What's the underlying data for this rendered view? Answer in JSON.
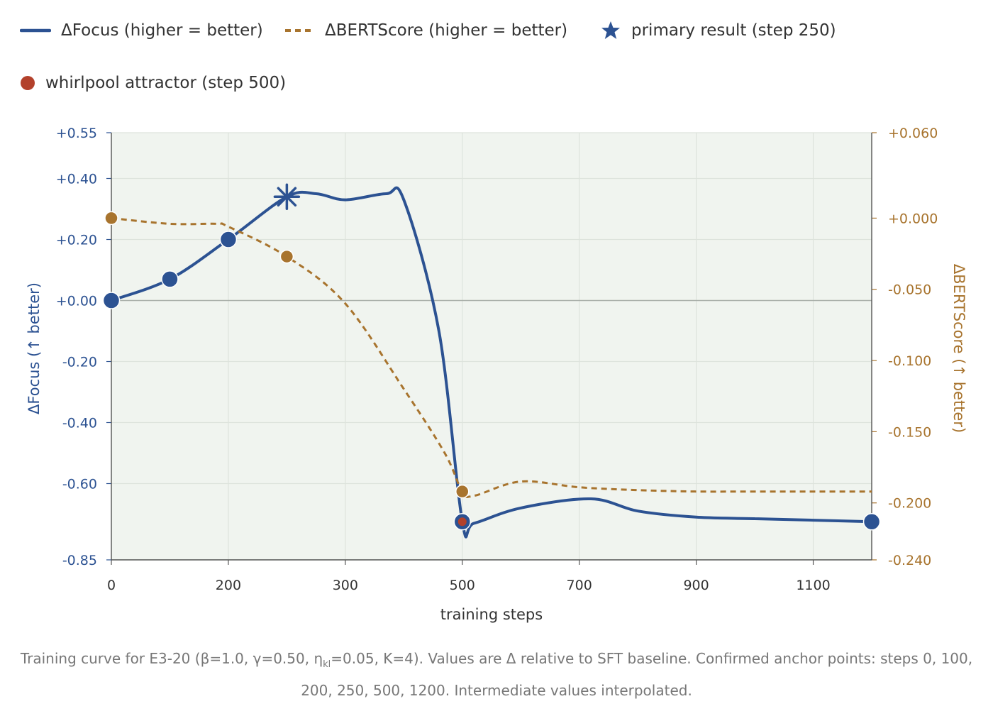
{
  "legend": [
    {
      "label": "ΔFocus (higher = better)",
      "kind": "solid-line",
      "color": "#2c5292"
    },
    {
      "label": "ΔBERTScore (higher = better)",
      "kind": "dashed-line",
      "color": "#a8742e"
    },
    {
      "label": "primary result (step 250)",
      "kind": "star",
      "color": "#2c5292"
    },
    {
      "label": "whirlpool attractor (step 500)",
      "kind": "dot",
      "color": "#b3412b"
    }
  ],
  "caption": {
    "part1": "Training curve for E3-20 (β=1.0, γ=0.50, η",
    "sub": "kl",
    "part2": "=0.05, K=4). Values are Δ relative to SFT baseline. Confirmed anchor points: steps 0, 100,",
    "line2": "200, 250, 500, 1200. Intermediate values interpolated."
  },
  "chart_data": {
    "type": "line",
    "xlabel": "training steps",
    "ylabel_left": "ΔFocus (↑ better)",
    "ylabel_right": "ΔBERTScore (↑ better)",
    "x_ticks": [
      {
        "value": 0,
        "label": "0"
      },
      {
        "value": 200,
        "label": "200"
      },
      {
        "value": 400,
        "label": "300"
      },
      {
        "value": 600,
        "label": "500"
      },
      {
        "value": 800,
        "label": "700"
      },
      {
        "value": 1000,
        "label": "900"
      },
      {
        "value": 1200,
        "label": "1100"
      }
    ],
    "xlim": [
      0,
      1300
    ],
    "y_left_ticks": [
      {
        "value": 0.55,
        "label": "+0.55"
      },
      {
        "value": 0.4,
        "label": "+0.40"
      },
      {
        "value": 0.2,
        "label": "+0.20"
      },
      {
        "value": 0.0,
        "label": "+0.00"
      },
      {
        "value": -0.2,
        "label": "-0.20"
      },
      {
        "value": -0.4,
        "label": "-0.40"
      },
      {
        "value": -0.6,
        "label": "-0.60"
      },
      {
        "value": -0.85,
        "label": "-0.85"
      }
    ],
    "ylim_left": [
      -0.85,
      0.55
    ],
    "y_right_ticks": [
      {
        "value": 0.06,
        "label": "+0.060"
      },
      {
        "value": 0.0,
        "label": "+0.000"
      },
      {
        "value": -0.05,
        "label": "-0.050"
      },
      {
        "value": -0.1,
        "label": "-0.100"
      },
      {
        "value": -0.15,
        "label": "-0.150"
      },
      {
        "value": -0.2,
        "label": "-0.200"
      },
      {
        "value": -0.24,
        "label": "-0.240"
      }
    ],
    "ylim_right": [
      -0.24,
      0.06
    ],
    "grid": true,
    "zero_line": true,
    "series": [
      {
        "name": "ΔFocus (higher = better)",
        "axis": "left",
        "style": "solid",
        "color": "#2c5292",
        "points": [
          [
            0,
            0.0
          ],
          [
            100,
            0.07
          ],
          [
            200,
            0.2
          ],
          [
            300,
            0.34
          ],
          [
            350,
            0.35
          ],
          [
            400,
            0.33
          ],
          [
            470,
            0.35
          ],
          [
            500,
            0.33
          ],
          [
            560,
            -0.1
          ],
          [
            600,
            -0.725
          ],
          [
            620,
            -0.73
          ],
          [
            700,
            -0.68
          ],
          [
            820,
            -0.65
          ],
          [
            900,
            -0.69
          ],
          [
            1000,
            -0.71
          ],
          [
            1100,
            -0.715
          ],
          [
            1200,
            -0.72
          ],
          [
            1300,
            -0.725
          ]
        ],
        "markers": [
          [
            0,
            0.0
          ],
          [
            100,
            0.07
          ],
          [
            200,
            0.2
          ],
          [
            600,
            -0.725
          ],
          [
            1300,
            -0.725
          ]
        ]
      },
      {
        "name": "ΔBERTScore (higher = better)",
        "axis": "right",
        "style": "dashed",
        "color": "#a8742e",
        "points": [
          [
            0,
            0.0
          ],
          [
            100,
            -0.004
          ],
          [
            180,
            -0.004
          ],
          [
            200,
            -0.006
          ],
          [
            300,
            -0.027
          ],
          [
            400,
            -0.06
          ],
          [
            500,
            -0.12
          ],
          [
            570,
            -0.165
          ],
          [
            600,
            -0.192
          ],
          [
            620,
            -0.195
          ],
          [
            700,
            -0.185
          ],
          [
            800,
            -0.189
          ],
          [
            900,
            -0.191
          ],
          [
            1000,
            -0.192
          ],
          [
            1100,
            -0.192
          ],
          [
            1200,
            -0.192
          ],
          [
            1300,
            -0.192
          ]
        ],
        "markers": [
          [
            0,
            0.0
          ],
          [
            300,
            -0.027
          ],
          [
            600,
            -0.192
          ]
        ]
      }
    ],
    "highlights": [
      {
        "name": "primary result (step 250)",
        "x": 300,
        "y": 0.34,
        "axis": "left",
        "shape": "star",
        "color": "#2c5292"
      },
      {
        "name": "whirlpool attractor (step 500)",
        "x": 600,
        "y": -0.725,
        "axis": "left",
        "shape": "dot",
        "color": "#b3412b"
      }
    ]
  }
}
